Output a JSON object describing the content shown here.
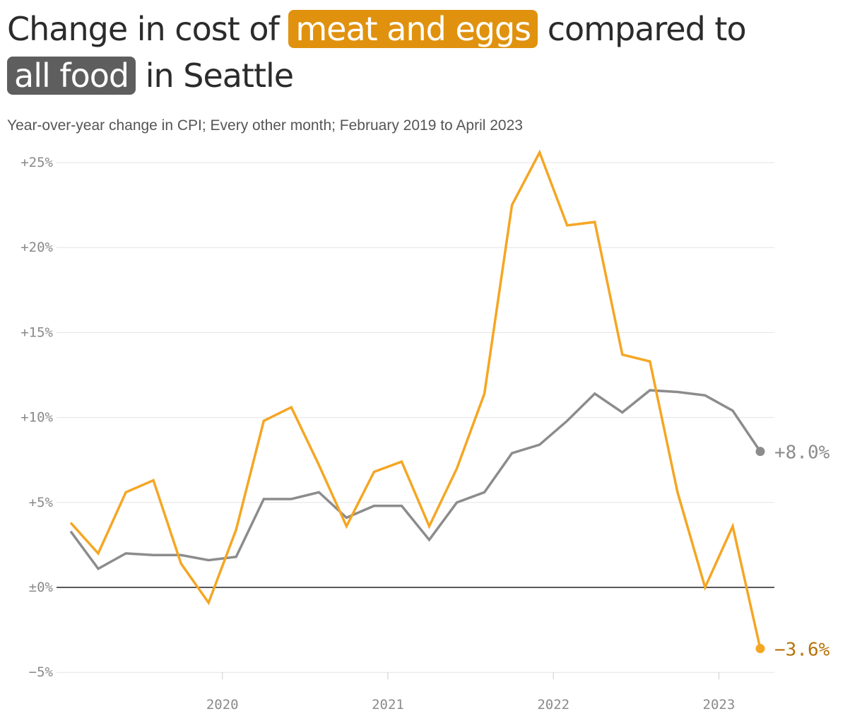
{
  "title": {
    "prefix": "Change in cost of",
    "highlight_meat": "meat and eggs",
    "middle": "compared to",
    "highlight_food": "all food",
    "suffix": "in Seattle"
  },
  "subtitle": "Year-over-year change in CPI; Every other month; February 2019 to April 2023",
  "colors": {
    "meat": "#f5a623",
    "meat_label": "#b8740a",
    "food": "#8c8c8c",
    "zero_line": "#222222",
    "grid": "#e3e3e3"
  },
  "chart_data": {
    "type": "line",
    "x": [
      "2019-02",
      "2019-04",
      "2019-06",
      "2019-08",
      "2019-10",
      "2019-12",
      "2020-02",
      "2020-04",
      "2020-06",
      "2020-08",
      "2020-10",
      "2020-12",
      "2021-02",
      "2021-04",
      "2021-06",
      "2021-08",
      "2021-10",
      "2021-12",
      "2022-02",
      "2022-04",
      "2022-06",
      "2022-08",
      "2022-10",
      "2022-12",
      "2023-02",
      "2023-04"
    ],
    "series": [
      {
        "key": "meat",
        "values": [
          3.8,
          2.0,
          5.6,
          6.3,
          1.4,
          -0.9,
          3.4,
          9.8,
          10.6,
          7.2,
          3.6,
          6.8,
          7.4,
          3.6,
          7.0,
          11.4,
          22.5,
          25.6,
          21.3,
          21.5,
          13.7,
          13.3,
          5.6,
          0.0,
          3.6,
          -3.6
        ]
      },
      {
        "key": "food",
        "values": [
          3.3,
          1.1,
          2.0,
          1.9,
          1.9,
          1.6,
          1.8,
          5.2,
          5.2,
          5.6,
          4.1,
          4.8,
          4.8,
          2.8,
          5.0,
          5.6,
          7.9,
          8.4,
          9.8,
          11.4,
          10.3,
          11.6,
          11.5,
          11.3,
          10.4,
          8.0
        ]
      }
    ],
    "end_labels": {
      "meat": "−3.6%",
      "food": "+8.0%"
    },
    "y_ticks": [
      {
        "value": 25,
        "label": "+25%"
      },
      {
        "value": 20,
        "label": "+20%"
      },
      {
        "value": 15,
        "label": "+15%"
      },
      {
        "value": 10,
        "label": "+10%"
      },
      {
        "value": 5,
        "label": "+5%"
      },
      {
        "value": 0,
        "label": "±0%"
      },
      {
        "value": -5,
        "label": "−5%"
      }
    ],
    "x_ticks": [
      {
        "value": "2020-01",
        "label": "2020"
      },
      {
        "value": "2021-01",
        "label": "2021"
      },
      {
        "value": "2022-01",
        "label": "2022"
      },
      {
        "value": "2023-01",
        "label": "2023"
      }
    ],
    "ylim": [
      -5,
      25
    ],
    "grid": true
  }
}
